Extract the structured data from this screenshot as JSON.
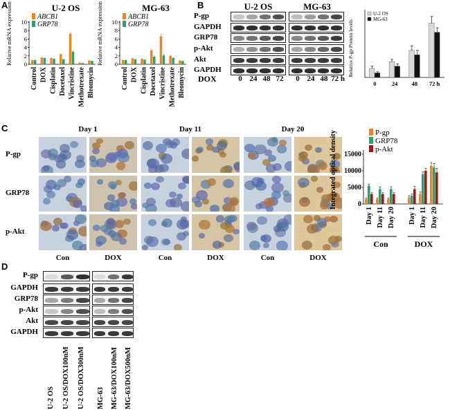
{
  "panels": {
    "A": {
      "label": "A",
      "charts": [
        {
          "type": "bar",
          "title": "U-2 OS",
          "ylabel": "Relative mRNA expression",
          "ylim": [
            0,
            10
          ],
          "yticks": [
            0,
            2,
            4,
            6,
            8,
            10
          ],
          "categories": [
            "Control",
            "DOX",
            "Cisplatin",
            "Docetaxel",
            "Vincristine",
            "Methotrexate",
            "Bleomycin"
          ],
          "series": [
            {
              "name": "ABCB1",
              "color": "#e8862a",
              "values": [
                1.0,
                1.6,
                1.5,
                2.4,
                7.2,
                0.4,
                0.9
              ],
              "errors": [
                0.1,
                0.15,
                0.15,
                0.2,
                0.4,
                0.1,
                0.1
              ]
            },
            {
              "name": "GRP78",
              "color": "#2e9e6a",
              "values": [
                1.0,
                1.5,
                1.3,
                1.2,
                3.0,
                0.3,
                0.8
              ],
              "errors": [
                0.1,
                0.1,
                0.1,
                0.1,
                0.25,
                0.05,
                0.1
              ]
            }
          ],
          "legend": "top-left"
        },
        {
          "type": "bar",
          "title": "MG-63",
          "ylabel": "Relative mRNA expression",
          "ylim": [
            0,
            10
          ],
          "yticks": [
            0,
            2,
            4,
            6,
            8,
            10
          ],
          "categories": [
            "Control",
            "DOX",
            "Cisplatin",
            "Docetaxel",
            "Vincristine",
            "Methotrexate",
            "Bleomycin"
          ],
          "series": [
            {
              "name": "ABCB1",
              "color": "#e8862a",
              "values": [
                1.0,
                1.4,
                1.3,
                3.3,
                6.6,
                2.0,
                0.9
              ],
              "errors": [
                0.1,
                0.15,
                0.15,
                0.4,
                0.6,
                0.3,
                0.1
              ]
            },
            {
              "name": "GRP78",
              "color": "#2e9e6a",
              "values": [
                1.0,
                1.2,
                1.1,
                1.8,
                2.1,
                1.5,
                0.8
              ],
              "errors": [
                0.1,
                0.1,
                0.1,
                0.3,
                0.4,
                0.2,
                0.1
              ]
            }
          ],
          "legend": "top-left"
        }
      ]
    },
    "B": {
      "label": "B",
      "cell_lines": [
        "U-2 OS",
        "MG-63"
      ],
      "bands": [
        "P-gp",
        "GAPDH",
        "GRP78",
        "p-Akt",
        "Akt",
        "GAPDH"
      ],
      "dox_label": "DOX",
      "timepoints": [
        "0",
        "24",
        "48",
        "72",
        "0",
        "24",
        "48",
        "72 h"
      ],
      "chart": {
        "type": "bar",
        "ylabel": "Relative P-gp Protein levels",
        "ylim": [
          0,
          0.3
        ],
        "categories": [
          "0",
          "24",
          "48",
          "72 h"
        ],
        "series": [
          {
            "name": "U-2 OS",
            "color": "#d9d9d9",
            "values": [
              0.04,
              0.07,
              0.12,
              0.24
            ],
            "errors": [
              0.01,
              0.01,
              0.02,
              0.03
            ]
          },
          {
            "name": "MG-63",
            "color": "#111111",
            "values": [
              0.02,
              0.05,
              0.1,
              0.2
            ],
            "errors": [
              0.005,
              0.01,
              0.02,
              0.02
            ]
          }
        ],
        "legend": "top-left"
      }
    },
    "C": {
      "label": "C",
      "days": [
        "Day 1",
        "Day 11",
        "Day 20"
      ],
      "rows": [
        "P-gp",
        "GRP78",
        "p-Akt"
      ],
      "cols": [
        "Con",
        "DOX",
        "Con",
        "DOX",
        "Con",
        "DOX"
      ],
      "chart": {
        "type": "bar",
        "ylabel": "Integrated optical density",
        "ylim": [
          0,
          15000
        ],
        "yticks": [
          0,
          5000,
          10000,
          15000
        ],
        "categories": [
          "Day 1",
          "Day 11",
          "Day 20",
          "Day 1",
          "Day 11",
          "Day 20"
        ],
        "groups": [
          "Con",
          "DOX"
        ],
        "series": [
          {
            "name": "P-gp",
            "color": "#e8862a",
            "values": [
              1500,
              1500,
              1500,
              2000,
              3000,
              11500
            ],
            "errors": [
              300,
              300,
              300,
              500,
              600,
              1000
            ]
          },
          {
            "name": "GRP78",
            "color": "#2e9e6a",
            "values": [
              5500,
              4500,
              4500,
              2500,
              9000,
              11000
            ],
            "errors": [
              500,
              600,
              700,
              500,
              700,
              1200
            ]
          },
          {
            "name": "p-Akt",
            "color": "#a01818",
            "values": [
              3000,
              3000,
              3000,
              4500,
              10000,
              9500
            ],
            "errors": [
              400,
              400,
              500,
              800,
              700,
              1200
            ]
          }
        ],
        "legend": "top-left"
      }
    },
    "D": {
      "label": "D",
      "bands": [
        "P-gp",
        "GAPDH",
        "GRP78",
        "p-Akt",
        "Akt",
        "GAPDH"
      ],
      "lanes": [
        "U-2 OS",
        "U-2 OS/DOX100nM",
        "U-2 OS/DOX300nM",
        "MG-63",
        "MG-63/DOX100nM",
        "MG-63/DOX500nM"
      ]
    }
  }
}
